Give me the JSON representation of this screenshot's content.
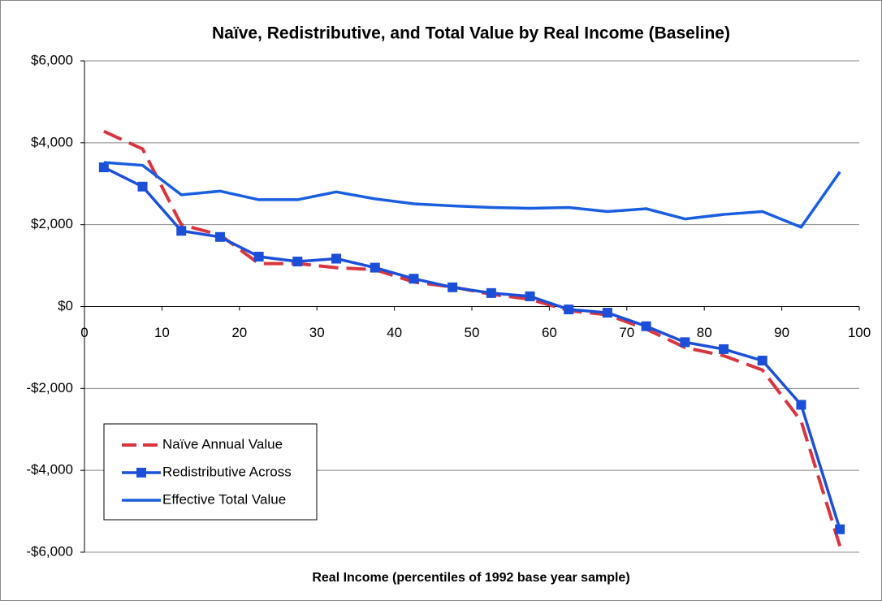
{
  "chart_data": {
    "type": "line",
    "title": "Naïve, Redistributive, and Total Value by Real Income (Baseline)",
    "x_label": "Real Income (percentiles of 1992 base year sample)",
    "x": [
      2.5,
      7.5,
      12.5,
      17.5,
      22.5,
      27.5,
      32.5,
      37.5,
      42.5,
      47.5,
      52.5,
      57.5,
      62.5,
      67.5,
      72.5,
      77.5,
      82.5,
      87.5,
      92.5,
      97.5
    ],
    "series": [
      {
        "name": "Naïve Annual Value",
        "color": "#d9353f",
        "dash": true,
        "marker": false,
        "values": [
          4280,
          3850,
          2000,
          1750,
          1050,
          1050,
          950,
          900,
          600,
          480,
          300,
          180,
          -100,
          -200,
          -550,
          -1000,
          -1200,
          -1550,
          -2800,
          -5850
        ]
      },
      {
        "name": "Redistributive Across",
        "color": "#1c4fd8",
        "dash": false,
        "marker": true,
        "values": [
          3400,
          2930,
          1850,
          1700,
          1220,
          1100,
          1170,
          950,
          680,
          470,
          330,
          250,
          -70,
          -150,
          -480,
          -870,
          -1040,
          -1320,
          -2400,
          -5440
        ]
      },
      {
        "name": "Effective Total Value",
        "color": "#1a5ee0",
        "dash": false,
        "marker": false,
        "values": [
          3520,
          3450,
          2730,
          2820,
          2610,
          2610,
          2800,
          2630,
          2510,
          2460,
          2420,
          2400,
          2420,
          2320,
          2390,
          2140,
          2250,
          2320,
          1940,
          3290
        ]
      }
    ],
    "xlim": [
      0,
      100
    ],
    "xticks": [
      0,
      10,
      20,
      30,
      40,
      50,
      60,
      70,
      80,
      90,
      100
    ],
    "ylim": [
      -6000,
      6000
    ],
    "yticks": [
      {
        "value": -6000,
        "label": "-$6,000"
      },
      {
        "value": -4000,
        "label": "-$4,000"
      },
      {
        "value": -2000,
        "label": "-$2,000"
      },
      {
        "value": 0,
        "label": "$0"
      },
      {
        "value": 2000,
        "label": "$2,000"
      },
      {
        "value": 4000,
        "label": "$4,000"
      },
      {
        "value": 6000,
        "label": "$6,000"
      }
    ],
    "grid": true,
    "legend": "lower left"
  }
}
